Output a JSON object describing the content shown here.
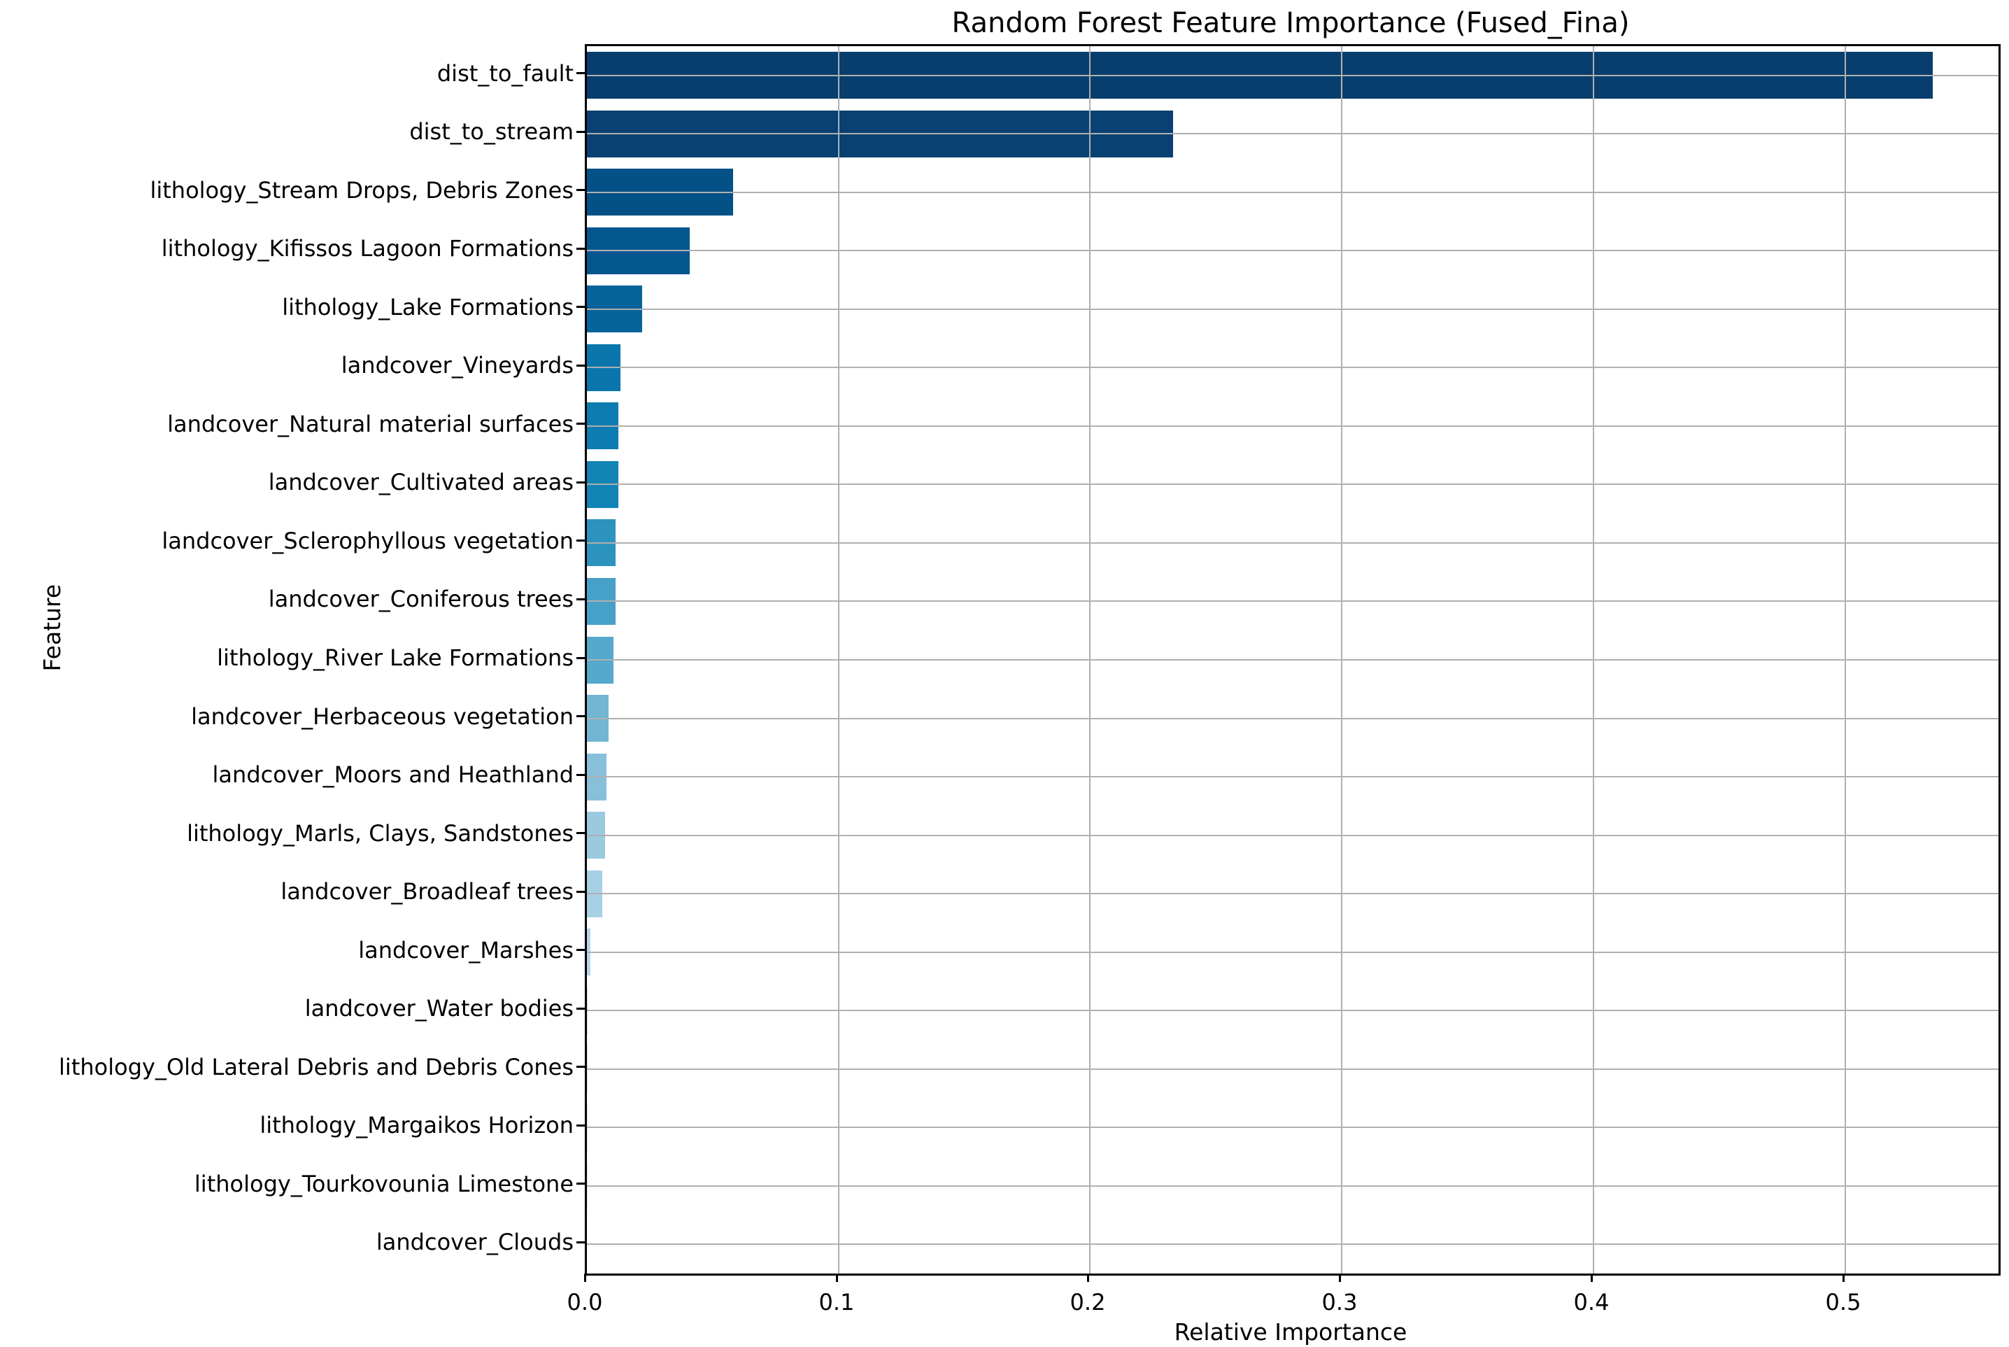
{
  "chart_data": {
    "type": "bar",
    "orientation": "horizontal",
    "title": "Random Forest Feature Importance (Fused_Fina)",
    "xlabel": "Relative Importance",
    "ylabel": "Feature",
    "xlim": [
      0,
      0.561
    ],
    "xticks": [
      0.0,
      0.1,
      0.2,
      0.3,
      0.4,
      0.5
    ],
    "xtick_labels": [
      "0.0",
      "0.1",
      "0.2",
      "0.3",
      "0.4",
      "0.5"
    ],
    "grid": true,
    "legend": "none",
    "categories": [
      "dist_to_fault",
      "dist_to_stream",
      "lithology_Stream Drops, Debris Zones",
      "lithology_Kifissos Lagoon Formations",
      "lithology_Lake Formations",
      "landcover_Vineyards",
      "landcover_Natural material surfaces",
      "landcover_Cultivated areas",
      "landcover_Sclerophyllous vegetation",
      "landcover_Coniferous trees",
      "lithology_River Lake Formations",
      "landcover_Herbaceous vegetation",
      "landcover_Moors and Heathland",
      "lithology_Marls, Clays, Sandstones",
      "landcover_Broadleaf trees",
      "landcover_Marshes",
      "landcover_Water bodies",
      "lithology_Old Lateral Debris and Debris Cones",
      "lithology_Margaikos Horizon",
      "lithology_Tourkovounia Limestone",
      "landcover_Clouds"
    ],
    "values": [
      0.535,
      0.233,
      0.058,
      0.041,
      0.022,
      0.0133,
      0.0126,
      0.0125,
      0.0114,
      0.0113,
      0.0106,
      0.0086,
      0.0078,
      0.0072,
      0.006,
      0.0014,
      0.0004,
      0.0003,
      0.0002,
      0.00015,
      0.0001
    ],
    "bar_colors": [
      "#073e6e",
      "#084172",
      "#045187",
      "#04568f",
      "#07639c",
      "#0a76ab",
      "#0d7cb0",
      "#1284b5",
      "#2b93be",
      "#47a0c7",
      "#55a9cc",
      "#72b6d3",
      "#88c0da",
      "#9bc9e0",
      "#a8d0e5",
      "#b5d7ea",
      "#c0dcee",
      "#c9e1f1",
      "#d2e6f3",
      "#daeaf5",
      "#e2eef7"
    ]
  },
  "colors": {
    "background": "#ffffff",
    "grid": "#b0b0b0",
    "spine": "#000000",
    "text": "#000000"
  }
}
